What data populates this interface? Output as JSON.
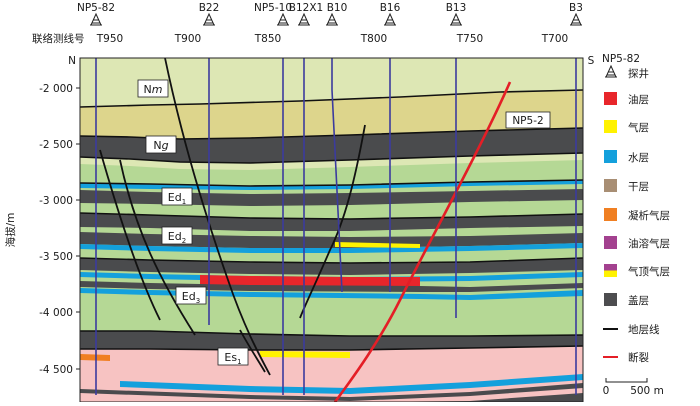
{
  "wells": [
    {
      "id": "w1",
      "name": "NP5-82"
    },
    {
      "id": "w2",
      "name": "B22"
    },
    {
      "id": "w3",
      "name": "NP5-10"
    },
    {
      "id": "w4",
      "name": "B12X1"
    },
    {
      "id": "w5",
      "name": "B10"
    },
    {
      "id": "w6",
      "name": "B16"
    },
    {
      "id": "w7",
      "name": "B13"
    },
    {
      "id": "w8",
      "name": "B3"
    }
  ],
  "survey_line": {
    "label": "联络测线号",
    "ticks": [
      "T950",
      "T900",
      "T850",
      "T800",
      "T750",
      "T700"
    ]
  },
  "direction": {
    "north": "N",
    "south": "S"
  },
  "y_axis": {
    "label": "海拔/m",
    "ticks": [
      "-2 000",
      "-2 500",
      "-3 000",
      "-3 500",
      "-4 000",
      "-4 500"
    ]
  },
  "formations": {
    "nm": {
      "base": "N",
      "sub": "m"
    },
    "ng": {
      "base": "N",
      "sub": "g"
    },
    "ed1": {
      "base": "Ed",
      "sub": "1"
    },
    "ed2": {
      "base": "Ed",
      "sub": "2"
    },
    "ed3": {
      "base": "Ed",
      "sub": "3"
    },
    "es1": {
      "base": "Es",
      "sub": "1"
    }
  },
  "fault_label": "NP5-2",
  "legend": {
    "title": "NP5-82",
    "items": [
      {
        "label": "探井",
        "kind": "well",
        "color": "#222222"
      },
      {
        "label": "油层",
        "kind": "box",
        "color": "#e8262b"
      },
      {
        "label": "气层",
        "kind": "box",
        "color": "#fff200"
      },
      {
        "label": "水层",
        "kind": "box",
        "color": "#14a0dc"
      },
      {
        "label": "干层",
        "kind": "box",
        "color": "#a88e74"
      },
      {
        "label": "凝析气层",
        "kind": "box",
        "color": "#f07f22"
      },
      {
        "label": "油溶气层",
        "kind": "box",
        "color": "#a3418f"
      },
      {
        "label": "气顶气层",
        "kind": "split",
        "color": "#a3418f",
        "color2": "#fff200"
      },
      {
        "label": "盖层",
        "kind": "box",
        "color": "#4d4d4f"
      },
      {
        "label": "地层线",
        "kind": "line",
        "color": "#111111"
      },
      {
        "label": "断裂",
        "kind": "line",
        "color": "#e41e26"
      }
    ]
  },
  "scale": {
    "start": "0",
    "end": "500 m"
  },
  "colors": {
    "plio_green": "#dde7b4",
    "ng_khaki": "#ddd58c",
    "ed_green": "#b5d895",
    "cap_gray": "#4a4b4d",
    "water_blue": "#14a0dc",
    "oil_red": "#e8262b",
    "gas_yellow": "#fff200",
    "es_pink": "#f7c3c2",
    "fault_red": "#e41e26"
  }
}
